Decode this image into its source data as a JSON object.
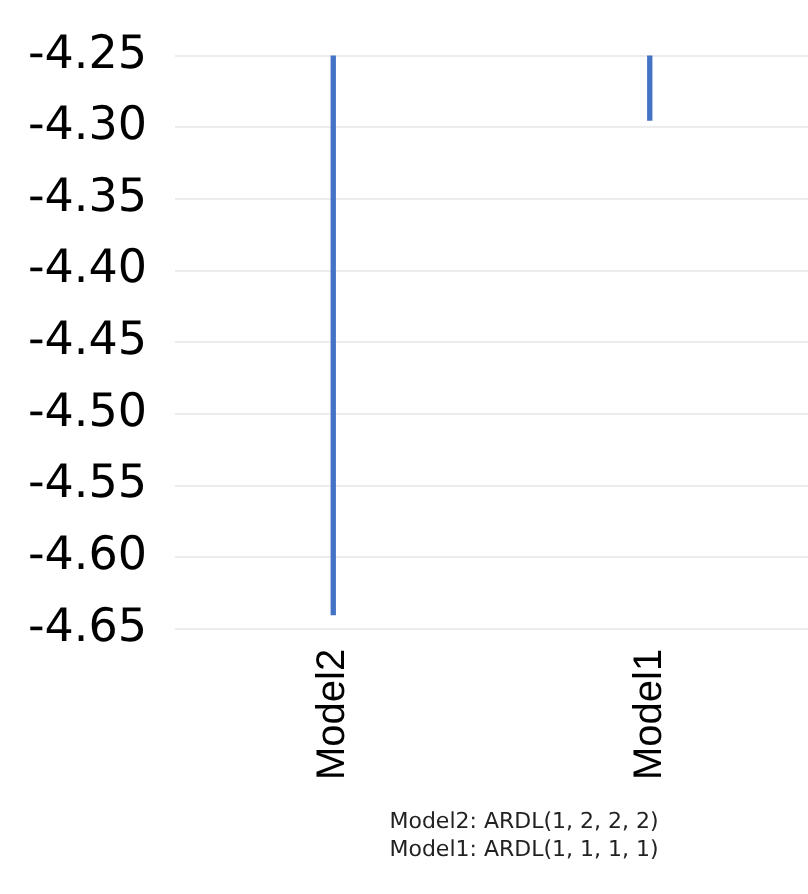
{
  "chart_data": {
    "type": "bar",
    "categories": [
      "Model2",
      "Model1"
    ],
    "values": [
      -4.64,
      -4.295
    ],
    "color": "#4472c4",
    "ylim": [
      -4.65,
      -4.25
    ],
    "yticks": [
      {
        "value": -4.65,
        "label": "-4.65"
      },
      {
        "value": -4.6,
        "label": "-4.60"
      },
      {
        "value": -4.55,
        "label": "-4.55"
      },
      {
        "value": -4.5,
        "label": "-4.50"
      },
      {
        "value": -4.45,
        "label": "-4.45"
      },
      {
        "value": -4.4,
        "label": "-4.40"
      },
      {
        "value": -4.35,
        "label": "-4.35"
      },
      {
        "value": -4.3,
        "label": "-4.30"
      },
      {
        "value": -4.25,
        "label": "-4.25"
      }
    ],
    "grid": "y",
    "annotations": [
      "Model2: ARDL(1, 2, 2, 2)",
      "Model1: ARDL(1, 1, 1, 1)"
    ]
  }
}
